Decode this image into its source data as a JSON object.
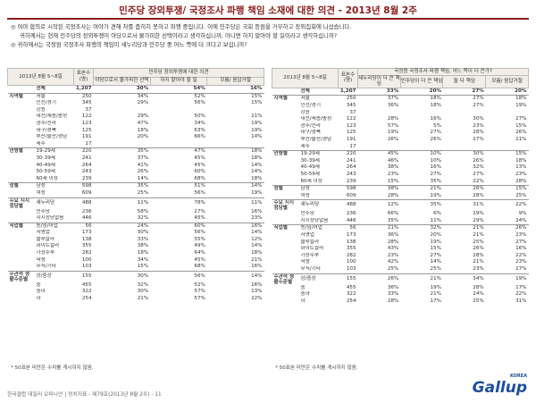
{
  "header": {
    "title": "민주당 장외투쟁/ 국정조사 파행 책임 소재에 대한 의견 - 2013년 8월 2주"
  },
  "questions": [
    {
      "lines": [
        "◎ 여야 합의로 시작된 국정조사는 여야가 견해 차를 좁히지 못하고 파행 중입니다. 이에 민주당은 국회 등원을 거부하고 장외집회에 나섰습니다.",
        "귀하께서는 현재 민주당의 장외투쟁이 야당으로서 불가피한 선택이라고 생각하십니까, 아니면 하지 말아야 할 일이라고 생각하십니까?"
      ]
    },
    {
      "lines": [
        "◎ 귀하께서는 국정원 국정조사 파행의 책임이 새누리당과 민주당 중 어느 쪽에 더 크다고 보십니까?"
      ]
    }
  ],
  "tables": [
    {
      "date": "2013년 8월 5~8일",
      "n_header": "표본수 (명)",
      "group_header": "민주당 장외투쟁에 대한 의견",
      "columns": [
        "야당으로서 불가피한 선택",
        "하지 말아야 할 일",
        "모름/ 응답거절"
      ],
      "rows": [
        {
          "label": "전체",
          "n": "1,207",
          "cells": [
            "30%",
            "54%",
            "16%"
          ]
        },
        {
          "group": "지역별",
          "label": "서울",
          "n": "250",
          "cells": [
            "34%",
            "52%",
            "15%"
          ]
        },
        {
          "label": "인천/경기",
          "n": "345",
          "cells": [
            "29%",
            "56%",
            "15%"
          ]
        },
        {
          "label": "강원",
          "n": "37",
          "cells": [
            null,
            null,
            null
          ]
        },
        {
          "label": "대전/세종/충청",
          "n": "122",
          "cells": [
            "29%",
            "50%",
            "21%"
          ]
        },
        {
          "label": "광주/전라",
          "n": "123",
          "cells": [
            "47%",
            "34%",
            "19%"
          ]
        },
        {
          "label": "대구/경북",
          "n": "125",
          "cells": [
            "18%",
            "63%",
            "19%"
          ]
        },
        {
          "label": "부산/울산/경남",
          "n": "191",
          "cells": [
            "20%",
            "66%",
            "14%"
          ]
        },
        {
          "label": "제주",
          "n": "17",
          "cells": [
            null,
            null,
            null
          ]
        },
        {
          "group": "연령별",
          "label": "19-29세",
          "n": "220",
          "cells": [
            "35%",
            "47%",
            "18%"
          ]
        },
        {
          "label": "30-39세",
          "n": "241",
          "cells": [
            "37%",
            "45%",
            "18%"
          ]
        },
        {
          "label": "40-49세",
          "n": "264",
          "cells": [
            "41%",
            "45%",
            "14%"
          ]
        },
        {
          "label": "50-59세",
          "n": "243",
          "cells": [
            "26%",
            "60%",
            "14%"
          ]
        },
        {
          "label": "60세 이상",
          "n": "239",
          "cells": [
            "14%",
            "68%",
            "18%"
          ]
        },
        {
          "group": "성별",
          "label": "남성",
          "n": "598",
          "cells": [
            "35%",
            "51%",
            "14%"
          ]
        },
        {
          "label": "여성",
          "n": "609",
          "cells": [
            "25%",
            "56%",
            "19%"
          ]
        },
        {
          "group": "주요 지지정당별",
          "label": "새누리당",
          "n": "488",
          "cells": [
            "11%",
            "78%",
            "11%"
          ]
        },
        {
          "label": "민주당",
          "n": "236",
          "cells": [
            "58%",
            "27%",
            "16%"
          ]
        },
        {
          "label": "지지정당없음",
          "n": "446",
          "cells": [
            "32%",
            "45%",
            "23%"
          ]
        },
        {
          "group": "직업별",
          "label": "농/임/어업",
          "n": "56",
          "cells": [
            "24%",
            "60%",
            "16%"
          ]
        },
        {
          "label": "자영업",
          "n": "173",
          "cells": [
            "30%",
            "56%",
            "14%"
          ]
        },
        {
          "label": "블루칼라",
          "n": "138",
          "cells": [
            "33%",
            "55%",
            "12%"
          ]
        },
        {
          "label": "화이트칼라",
          "n": "355",
          "cells": [
            "38%",
            "49%",
            "14%"
          ]
        },
        {
          "label": "가정주부",
          "n": "282",
          "cells": [
            "18%",
            "64%",
            "18%"
          ]
        },
        {
          "label": "학생",
          "n": "100",
          "cells": [
            "34%",
            "45%",
            "21%"
          ]
        },
        {
          "label": "무직/기타",
          "n": "103",
          "cells": [
            "15%",
            "68%",
            "16%"
          ]
        },
        {
          "group": "주관적 생활수준별",
          "label": "상/중상",
          "n": "155",
          "cells": [
            "30%",
            "56%",
            "14%"
          ]
        },
        {
          "label": "중",
          "n": "455",
          "cells": [
            "32%",
            "52%",
            "16%"
          ]
        },
        {
          "label": "중하",
          "n": "322",
          "cells": [
            "30%",
            "57%",
            "13%"
          ]
        },
        {
          "label": "하",
          "n": "254",
          "cells": [
            "21%",
            "57%",
            "22%"
          ]
        }
      ]
    },
    {
      "date": "2013년 8월 5~8일",
      "n_header": "표본수 (명)",
      "group_header": "국정원 국정조사 파행 책임, 어느 쪽이 더 큰가?",
      "columns": [
        "새누리당이 더 큰 책임",
        "민주당이 더 큰 책임",
        "둘 다 책임",
        "모름/ 응답거절"
      ],
      "rows": [
        {
          "label": "전체",
          "n": "1,207",
          "cells": [
            "33%",
            "20%",
            "27%",
            "20%"
          ]
        },
        {
          "group": "지역별",
          "label": "서울",
          "n": "250",
          "cells": [
            "37%",
            "18%",
            "27%",
            "18%"
          ]
        },
        {
          "label": "인천/경기",
          "n": "345",
          "cells": [
            "36%",
            "18%",
            "27%",
            "19%"
          ]
        },
        {
          "label": "강원",
          "n": "37",
          "cells": [
            null,
            null,
            null,
            null
          ]
        },
        {
          "label": "대전/세종/충청",
          "n": "122",
          "cells": [
            "28%",
            "16%",
            "30%",
            "27%"
          ]
        },
        {
          "label": "광주/전라",
          "n": "123",
          "cells": [
            "57%",
            "5%",
            "23%",
            "15%"
          ]
        },
        {
          "label": "대구/경북",
          "n": "125",
          "cells": [
            "19%",
            "27%",
            "28%",
            "26%"
          ]
        },
        {
          "label": "부산/울산/경남",
          "n": "191",
          "cells": [
            "26%",
            "26%",
            "27%",
            "21%"
          ]
        },
        {
          "label": "제주",
          "n": "17",
          "cells": [
            null,
            null,
            null,
            null
          ]
        },
        {
          "group": "연령별",
          "label": "19-29세",
          "n": "220",
          "cells": [
            "45%",
            "10%",
            "30%",
            "15%"
          ]
        },
        {
          "label": "30-39세",
          "n": "241",
          "cells": [
            "46%",
            "10%",
            "26%",
            "18%"
          ]
        },
        {
          "label": "40-49세",
          "n": "264",
          "cells": [
            "38%",
            "16%",
            "32%",
            "13%"
          ]
        },
        {
          "label": "50-59세",
          "n": "243",
          "cells": [
            "23%",
            "27%",
            "27%",
            "23%"
          ]
        },
        {
          "label": "60세 이상",
          "n": "239",
          "cells": [
            "15%",
            "35%",
            "22%",
            "28%"
          ]
        },
        {
          "group": "성별",
          "label": "남성",
          "n": "598",
          "cells": [
            "38%",
            "21%",
            "26%",
            "15%"
          ]
        },
        {
          "label": "여성",
          "n": "609",
          "cells": [
            "28%",
            "19%",
            "28%",
            "25%"
          ]
        },
        {
          "group": "주요 지지정당별",
          "label": "새누리당",
          "n": "488",
          "cells": [
            "12%",
            "35%",
            "31%",
            "22%"
          ]
        },
        {
          "label": "민주당",
          "n": "236",
          "cells": [
            "66%",
            "6%",
            "19%",
            "9%"
          ]
        },
        {
          "label": "지지정당없음",
          "n": "446",
          "cells": [
            "35%",
            "11%",
            "29%",
            "24%"
          ]
        },
        {
          "group": "직업별",
          "label": "농/임/어업",
          "n": "56",
          "cells": [
            "21%",
            "32%",
            "21%",
            "26%"
          ]
        },
        {
          "label": "자영업",
          "n": "173",
          "cells": [
            "36%",
            "20%",
            "21%",
            "23%"
          ]
        },
        {
          "label": "블루칼라",
          "n": "138",
          "cells": [
            "28%",
            "19%",
            "25%",
            "27%"
          ]
        },
        {
          "label": "화이트칼라",
          "n": "355",
          "cells": [
            "43%",
            "15%",
            "26%",
            "16%"
          ]
        },
        {
          "label": "가정주부",
          "n": "282",
          "cells": [
            "23%",
            "27%",
            "28%",
            "22%"
          ]
        },
        {
          "label": "학생",
          "n": "100",
          "cells": [
            "42%",
            "14%",
            "21%",
            "23%"
          ]
        },
        {
          "label": "무직/기타",
          "n": "103",
          "cells": [
            "25%",
            "25%",
            "23%",
            "27%"
          ]
        },
        {
          "group": "주관적 생활수준별",
          "label": "상/중상",
          "n": "155",
          "cells": [
            "26%",
            "21%",
            "34%",
            "19%"
          ]
        },
        {
          "label": "중",
          "n": "455",
          "cells": [
            "36%",
            "19%",
            "28%",
            "17%"
          ]
        },
        {
          "label": "중하",
          "n": "322",
          "cells": [
            "33%",
            "21%",
            "24%",
            "22%"
          ]
        },
        {
          "label": "하",
          "n": "254",
          "cells": [
            "28%",
            "17%",
            "25%",
            "31%"
          ]
        }
      ]
    }
  ],
  "footnotes": [
    "* 50표본 미만은 수치를 게시하지 않음.",
    "* 50표본 미만은 수치를 게시하지 않음."
  ],
  "footer": "한국갤럽 데일리 오피니언 | 정치지표 - 제79호(2013년 8월 2주) - 11",
  "logo": {
    "name": "Gallup",
    "sub": "KOREA"
  }
}
